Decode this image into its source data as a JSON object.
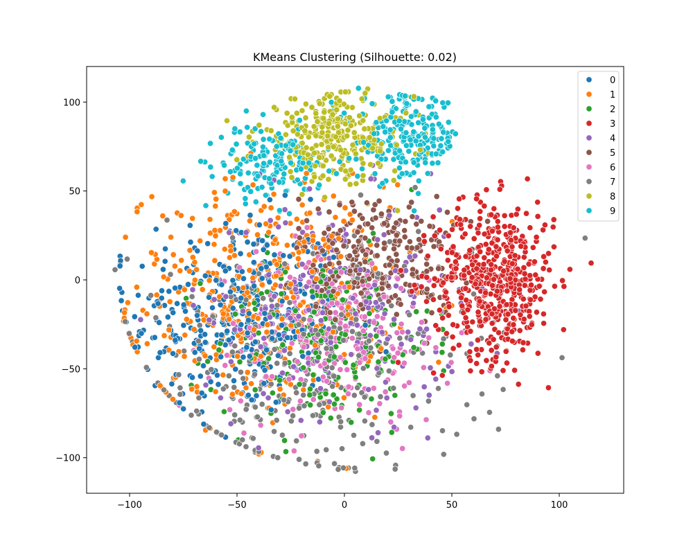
{
  "chart_data": {
    "type": "scatter",
    "title": "KMeans Clustering (Silhouette: 0.02)",
    "xlabel": "",
    "ylabel": "",
    "xlim": [
      -120,
      130
    ],
    "ylim": [
      -120,
      120
    ],
    "xticks": [
      -100,
      -50,
      0,
      50,
      100
    ],
    "yticks": [
      -100,
      -50,
      0,
      50,
      100
    ],
    "grid": false,
    "legend_position": "top-right",
    "series": [
      {
        "name": "0",
        "color": "#1f77b4",
        "center": [
          -50,
          -20
        ],
        "spread": [
          25,
          28
        ],
        "n": 340
      },
      {
        "name": "1",
        "color": "#ff7f0e",
        "center": [
          -40,
          -10
        ],
        "spread": [
          30,
          32
        ],
        "n": 420
      },
      {
        "name": "2",
        "color": "#2ca02c",
        "center": [
          -10,
          -35
        ],
        "spread": [
          25,
          25
        ],
        "n": 200
      },
      {
        "name": "3",
        "color": "#d62728",
        "center": [
          70,
          0
        ],
        "spread": [
          14,
          22
        ],
        "n": 520
      },
      {
        "name": "4",
        "color": "#9467bd",
        "center": [
          -5,
          -15
        ],
        "spread": [
          30,
          30
        ],
        "n": 260
      },
      {
        "name": "5",
        "color": "#8c564b",
        "center": [
          15,
          12
        ],
        "spread": [
          18,
          18
        ],
        "n": 300
      },
      {
        "name": "6",
        "color": "#e377c2",
        "center": [
          -5,
          -30
        ],
        "spread": [
          28,
          25
        ],
        "n": 250
      },
      {
        "name": "7",
        "color": "#7f7f7f",
        "center": [
          -20,
          -50
        ],
        "spread": [
          40,
          35
        ],
        "n": 320
      },
      {
        "name": "8",
        "color": "#bcbd22",
        "center": [
          -5,
          80
        ],
        "spread": [
          18,
          12
        ],
        "n": 300
      },
      {
        "name": "9",
        "color": "#17becf",
        "center": [
          30,
          80
        ],
        "spread": [
          12,
          12
        ],
        "n": 220
      },
      {
        "name": "9",
        "color": "#17becf",
        "center": [
          -35,
          65
        ],
        "spread": [
          12,
          10
        ],
        "n": 160
      }
    ],
    "legend": [
      "0",
      "1",
      "2",
      "3",
      "4",
      "5",
      "6",
      "7",
      "8",
      "9"
    ]
  }
}
